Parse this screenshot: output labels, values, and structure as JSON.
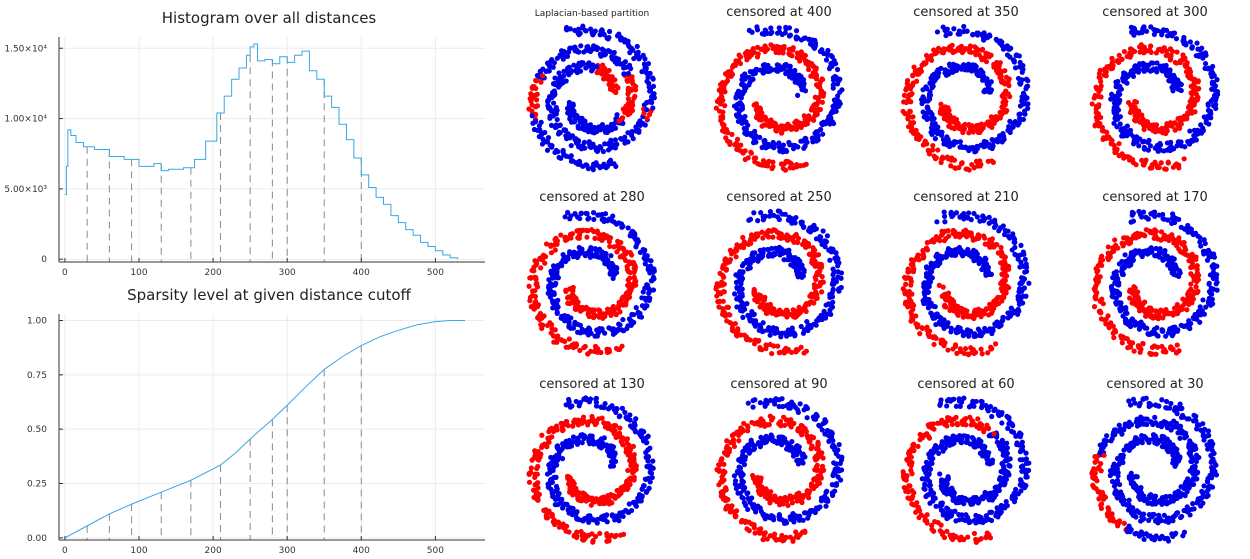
{
  "colors": {
    "line": "#3aa7e6",
    "axis": "#333333",
    "grid": "#ececec",
    "dash": "#8a8a8a",
    "cluster_a": "#ff0000",
    "cluster_b": "#0000e6"
  },
  "chart_data": [
    {
      "type": "line",
      "title": "Histogram over all distances",
      "xlabel": "",
      "ylabel": "",
      "xlim": [
        -8,
        567
      ],
      "ylim": [
        -200,
        15800
      ],
      "grid": true,
      "xticks": [
        {
          "value": 0,
          "label": "0"
        },
        {
          "value": 100,
          "label": "100"
        },
        {
          "value": 200,
          "label": "200"
        },
        {
          "value": 300,
          "label": "300"
        },
        {
          "value": 400,
          "label": "400"
        },
        {
          "value": 500,
          "label": "500"
        }
      ],
      "yticks": [
        {
          "value": 0,
          "label": "0"
        },
        {
          "value": 5000,
          "label": "5.00×10³"
        },
        {
          "value": 10000,
          "label": "1.00×10⁴"
        },
        {
          "value": 15000,
          "label": "1.50×10⁴"
        }
      ],
      "cutoffs": [
        30,
        60,
        90,
        130,
        170,
        210,
        250,
        280,
        300,
        350,
        400
      ],
      "series": [
        {
          "x": [
            0,
            2,
            4,
            8,
            15,
            25,
            40,
            60,
            80,
            100,
            120,
            130,
            140,
            160,
            175,
            190,
            205,
            215,
            225,
            235,
            245,
            250,
            255,
            260,
            270,
            280,
            290,
            300,
            310,
            320,
            330,
            340,
            350,
            360,
            370,
            380,
            390,
            400,
            410,
            420,
            430,
            440,
            450,
            460,
            470,
            480,
            490,
            500,
            510,
            520,
            530
          ],
          "values": [
            4600,
            6600,
            9200,
            8800,
            8300,
            8000,
            7800,
            7300,
            7100,
            6600,
            6800,
            6300,
            6400,
            6500,
            7100,
            8400,
            10400,
            11600,
            12800,
            13600,
            14500,
            15100,
            15300,
            14100,
            14200,
            13900,
            14400,
            14000,
            14500,
            14800,
            13400,
            12800,
            11600,
            10800,
            9600,
            8500,
            7200,
            6000,
            5100,
            4400,
            3900,
            3100,
            2600,
            2100,
            1700,
            1200,
            900,
            600,
            300,
            100,
            0
          ]
        }
      ]
    },
    {
      "type": "line",
      "title": "Sparsity level at given distance cutoff",
      "xlabel": "",
      "ylabel": "",
      "xlim": [
        -8,
        567
      ],
      "ylim": [
        -0.01,
        1.03
      ],
      "grid": true,
      "xticks": [
        {
          "value": 0,
          "label": "0"
        },
        {
          "value": 100,
          "label": "100"
        },
        {
          "value": 200,
          "label": "200"
        },
        {
          "value": 300,
          "label": "300"
        },
        {
          "value": 400,
          "label": "400"
        },
        {
          "value": 500,
          "label": "500"
        }
      ],
      "yticks": [
        {
          "value": 0,
          "label": "0.00"
        },
        {
          "value": 0.25,
          "label": "0.25"
        },
        {
          "value": 0.5,
          "label": "0.50"
        },
        {
          "value": 0.75,
          "label": "0.75"
        },
        {
          "value": 1,
          "label": "1.00"
        }
      ],
      "cutoffs": [
        30,
        60,
        90,
        130,
        170,
        210,
        250,
        280,
        300,
        350,
        400
      ],
      "series": [
        {
          "x": [
            0,
            30,
            60,
            90,
            130,
            170,
            210,
            230,
            250,
            280,
            300,
            325,
            350,
            375,
            400,
            425,
            450,
            475,
            500,
            520,
            540
          ],
          "values": [
            0.0,
            0.055,
            0.11,
            0.155,
            0.21,
            0.265,
            0.335,
            0.39,
            0.455,
            0.545,
            0.61,
            0.695,
            0.775,
            0.835,
            0.885,
            0.925,
            0.955,
            0.98,
            0.995,
            1.0,
            1.0
          ]
        }
      ]
    },
    {
      "type": "scatter",
      "panels": [
        {
          "title": "Laplacian-based partition",
          "kind": "laplacian"
        },
        {
          "title": "censored at 400",
          "kind": "split",
          "red_side": "outer"
        },
        {
          "title": "censored at 350",
          "kind": "split",
          "red_side": "outer"
        },
        {
          "title": "censored at 300",
          "kind": "split",
          "red_side": "outer"
        },
        {
          "title": "censored at 280",
          "kind": "split",
          "red_side": "outer"
        },
        {
          "title": "censored at 250",
          "kind": "split",
          "red_side": "outer"
        },
        {
          "title": "censored at 210",
          "kind": "split",
          "red_side": "outer"
        },
        {
          "title": "censored at 170",
          "kind": "split",
          "red_side": "outer"
        },
        {
          "title": "censored at 130",
          "kind": "split",
          "red_side": "outer"
        },
        {
          "title": "censored at 90",
          "kind": "split",
          "red_side": "outer"
        },
        {
          "title": "censored at 60",
          "kind": "partial",
          "red_side": "outer"
        },
        {
          "title": "censored at 30",
          "kind": "mostly_blue",
          "red_side": "outer"
        }
      ]
    }
  ]
}
